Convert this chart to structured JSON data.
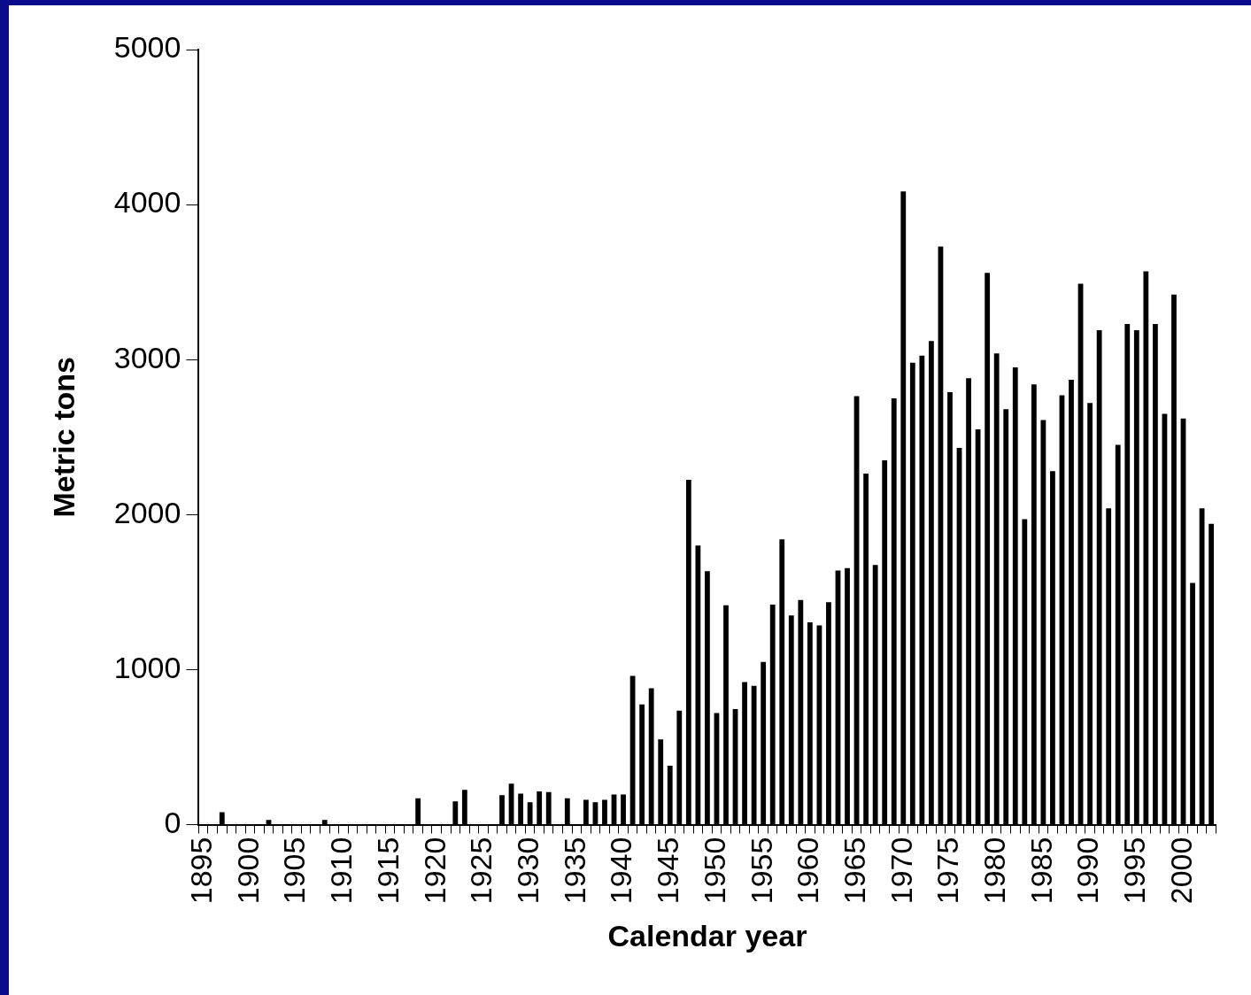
{
  "chart_data": {
    "type": "bar",
    "xlabel": "Calendar year",
    "ylabel": "Metric tons",
    "color": "#000000",
    "ylim": [
      0,
      5000
    ],
    "yticks": [
      0,
      1000,
      2000,
      3000,
      4000,
      5000
    ],
    "grid": false,
    "legend": false,
    "categories": [
      "1895",
      null,
      null,
      null,
      null,
      "1900",
      null,
      null,
      null,
      null,
      "1905",
      null,
      null,
      null,
      null,
      "1910",
      null,
      null,
      null,
      null,
      "1915",
      null,
      null,
      null,
      null,
      "1920",
      null,
      null,
      null,
      null,
      "1925",
      null,
      null,
      null,
      null,
      "1930",
      null,
      null,
      null,
      null,
      "1935",
      null,
      null,
      null,
      null,
      "1940",
      null,
      null,
      null,
      null,
      "1945",
      null,
      null,
      null,
      null,
      "1950",
      null,
      null,
      null,
      null,
      "1955",
      null,
      null,
      null,
      null,
      "1960",
      null,
      null,
      null,
      null,
      "1965",
      null,
      null,
      null,
      null,
      "1970",
      null,
      null,
      null,
      null,
      "1975",
      null,
      null,
      null,
      null,
      "1980",
      null,
      null,
      null,
      null,
      "1985",
      null,
      null,
      null,
      null,
      "1990",
      null,
      null,
      null,
      null,
      "1995",
      null,
      null,
      null,
      null,
      "2000",
      null,
      null,
      null
    ],
    "values": [
      0,
      0,
      80,
      0,
      0,
      0,
      0,
      30,
      0,
      0,
      0,
      0,
      0,
      30,
      0,
      0,
      0,
      0,
      0,
      0,
      0,
      0,
      0,
      170,
      0,
      0,
      0,
      150,
      225,
      0,
      0,
      0,
      190,
      265,
      200,
      145,
      215,
      210,
      0,
      170,
      0,
      160,
      145,
      160,
      195,
      195,
      960,
      775,
      880,
      550,
      380,
      735,
      2225,
      1800,
      1635,
      720,
      1415,
      745,
      920,
      895,
      1050,
      1420,
      1840,
      1350,
      1450,
      1305,
      1285,
      1435,
      1640,
      1655,
      2765,
      2265,
      1675,
      2350,
      2750,
      4085,
      2980,
      3025,
      3120,
      3730,
      2790,
      2430,
      2880,
      2550,
      3560,
      3040,
      2680,
      2950,
      1970,
      2840,
      2610,
      2280,
      2770,
      2870,
      3490,
      2720,
      3190,
      2040,
      2450,
      3230,
      3190,
      3570,
      3230,
      2650,
      3420,
      2620,
      1560,
      2040,
      1940
    ]
  }
}
